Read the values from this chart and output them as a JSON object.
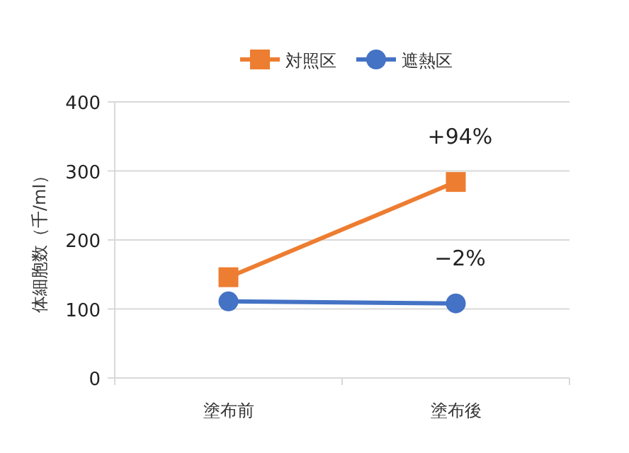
{
  "chart_data": {
    "type": "line",
    "ylabel": "体細胞数（千/ml）",
    "categories": [
      "塗布前",
      "塗布後"
    ],
    "series": [
      {
        "name": "対照区",
        "color": "#ed7d31",
        "marker": "square",
        "values": [
          146,
          284
        ]
      },
      {
        "name": "遮熱区",
        "color": "#4472c4",
        "marker": "circle",
        "values": [
          111,
          108
        ]
      }
    ],
    "ylim": [
      0,
      400
    ],
    "yticks": [
      0,
      100,
      200,
      300,
      400
    ],
    "grid": "y",
    "legend": "top",
    "annotations": [
      "+94%",
      "−2%"
    ]
  }
}
